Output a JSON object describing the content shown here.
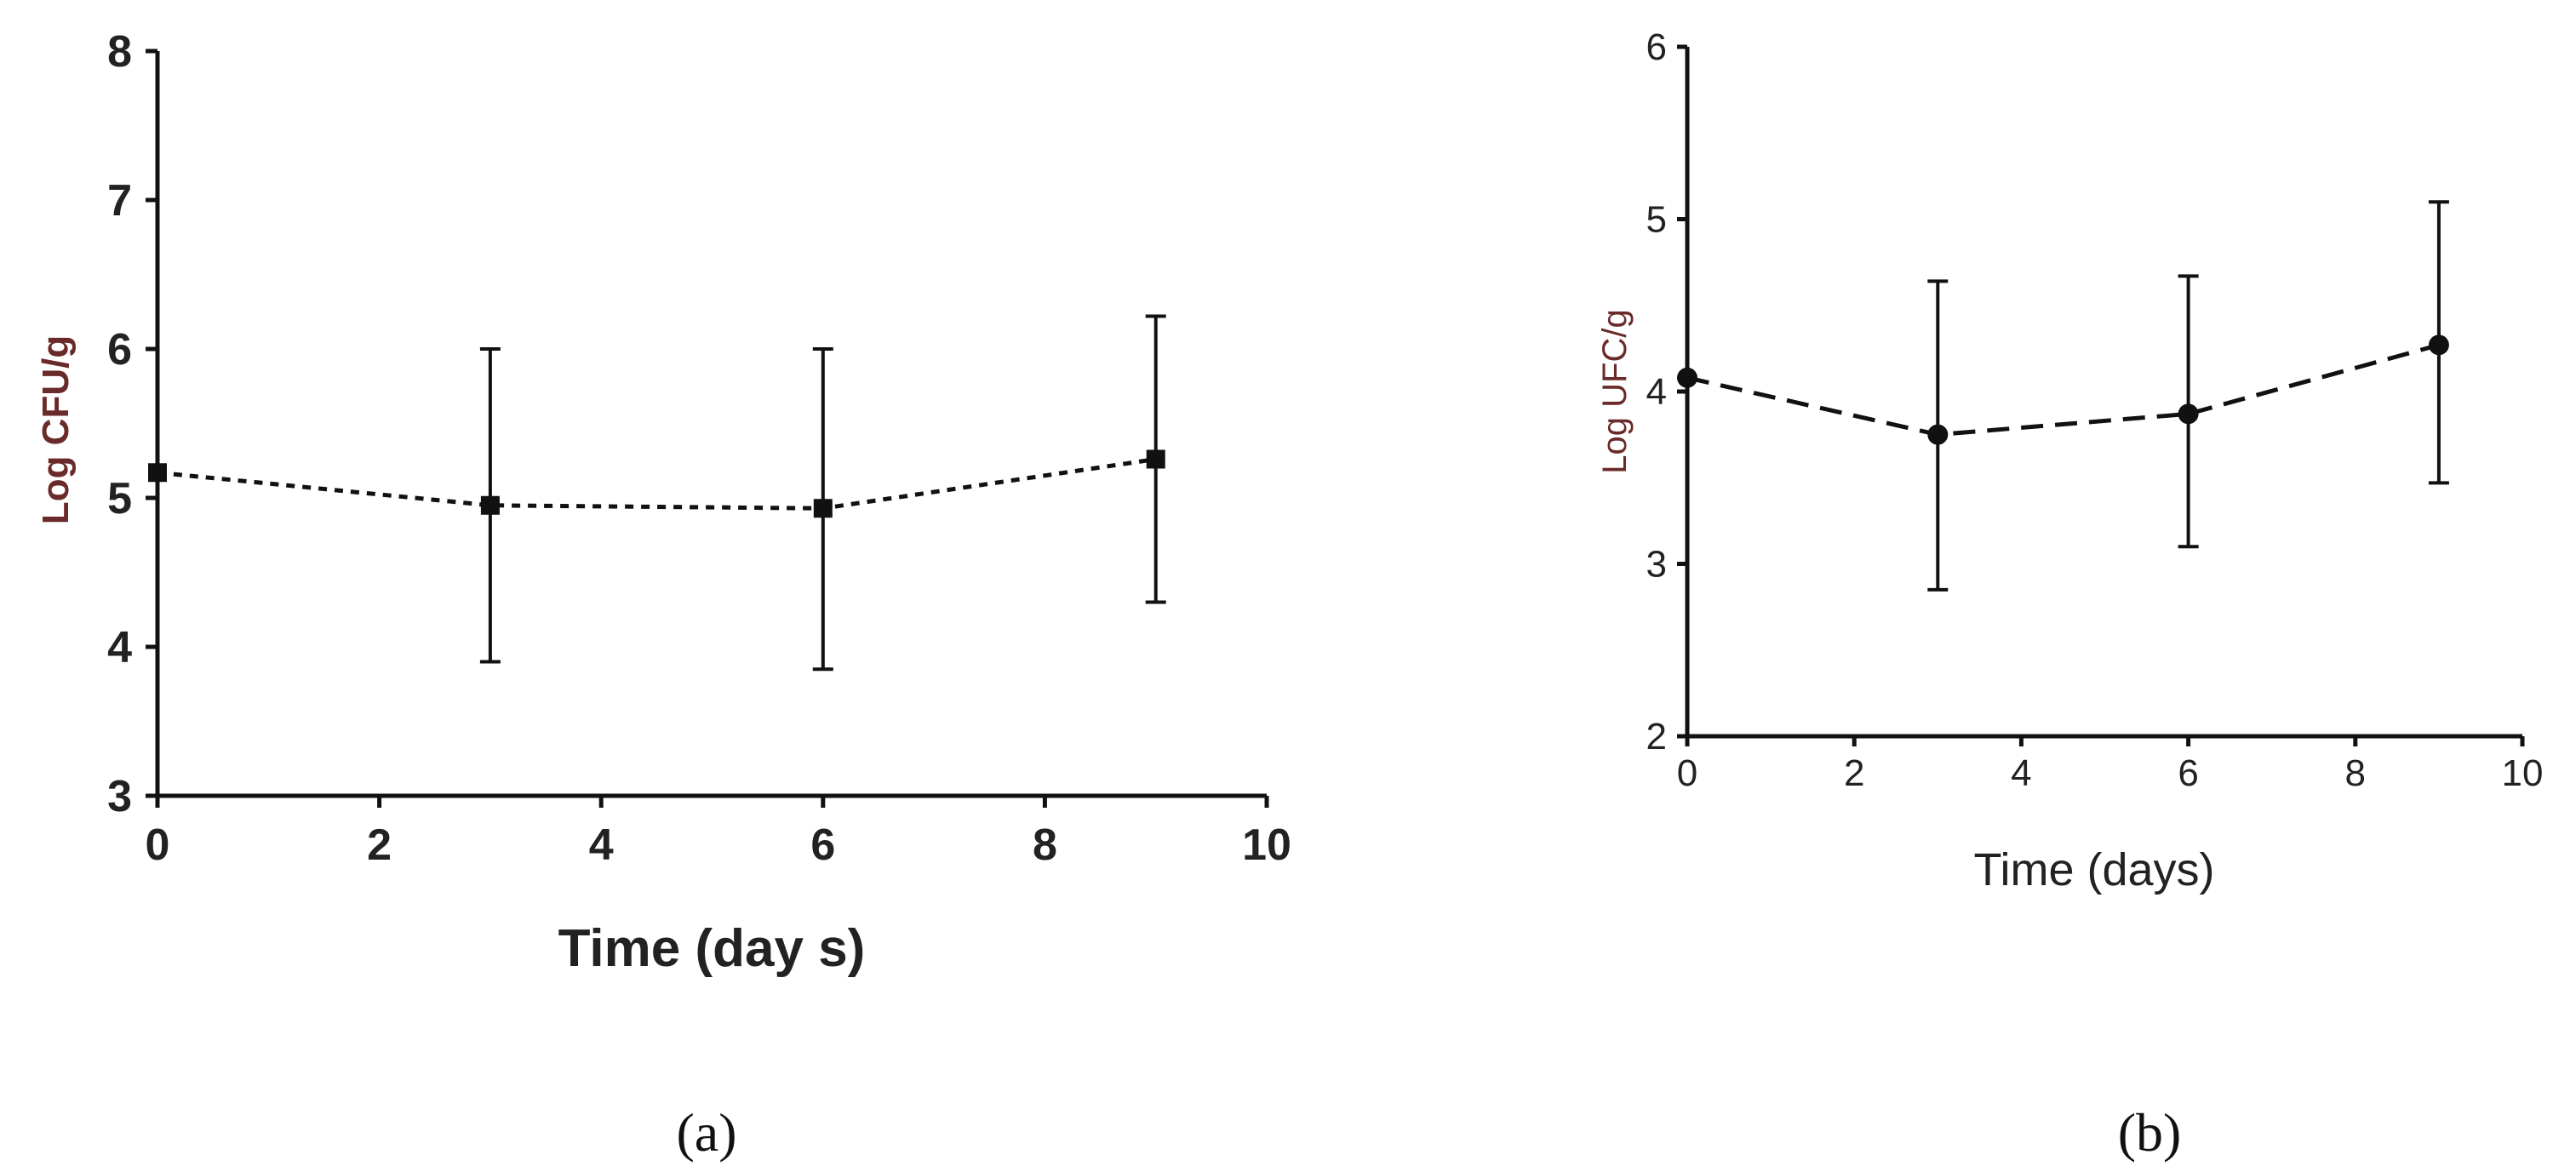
{
  "chart_data": [
    {
      "id": "a",
      "type": "line",
      "caption": "(a)",
      "xlabel": "Time (day s)",
      "ylabel": "Log CFU/g",
      "xlim": [
        0,
        10
      ],
      "ylim": [
        3,
        8
      ],
      "xticks": [
        "0",
        "2",
        "4",
        "6",
        "8",
        "10"
      ],
      "yticks": [
        "3",
        "4",
        "5",
        "6",
        "7",
        "8"
      ],
      "marker": "square",
      "line_style": "dotted",
      "series": [
        {
          "name": "",
          "x": [
            0,
            3,
            6,
            9
          ],
          "y": [
            5.17,
            4.95,
            4.93,
            5.26
          ],
          "err_low": [
            5.17,
            3.9,
            3.85,
            4.3
          ],
          "err_high": [
            5.17,
            6.0,
            6.0,
            6.22
          ]
        }
      ]
    },
    {
      "id": "b",
      "type": "line",
      "caption": "(b)",
      "xlabel": "Time (days)",
      "ylabel": "Log UFC/g",
      "xlim": [
        0,
        10
      ],
      "ylim": [
        2,
        6
      ],
      "xticks": [
        "0",
        "2",
        "4",
        "6",
        "8",
        "10"
      ],
      "yticks": [
        "2",
        "3",
        "4",
        "5",
        "6"
      ],
      "marker": "circle",
      "line_style": "dashed",
      "series": [
        {
          "name": "",
          "x": [
            0,
            3,
            6,
            9
          ],
          "y": [
            4.08,
            3.75,
            3.87,
            4.27
          ],
          "err_low": [
            4.08,
            2.85,
            3.1,
            3.47
          ],
          "err_high": [
            4.08,
            4.64,
            4.67,
            5.1
          ]
        }
      ]
    }
  ]
}
